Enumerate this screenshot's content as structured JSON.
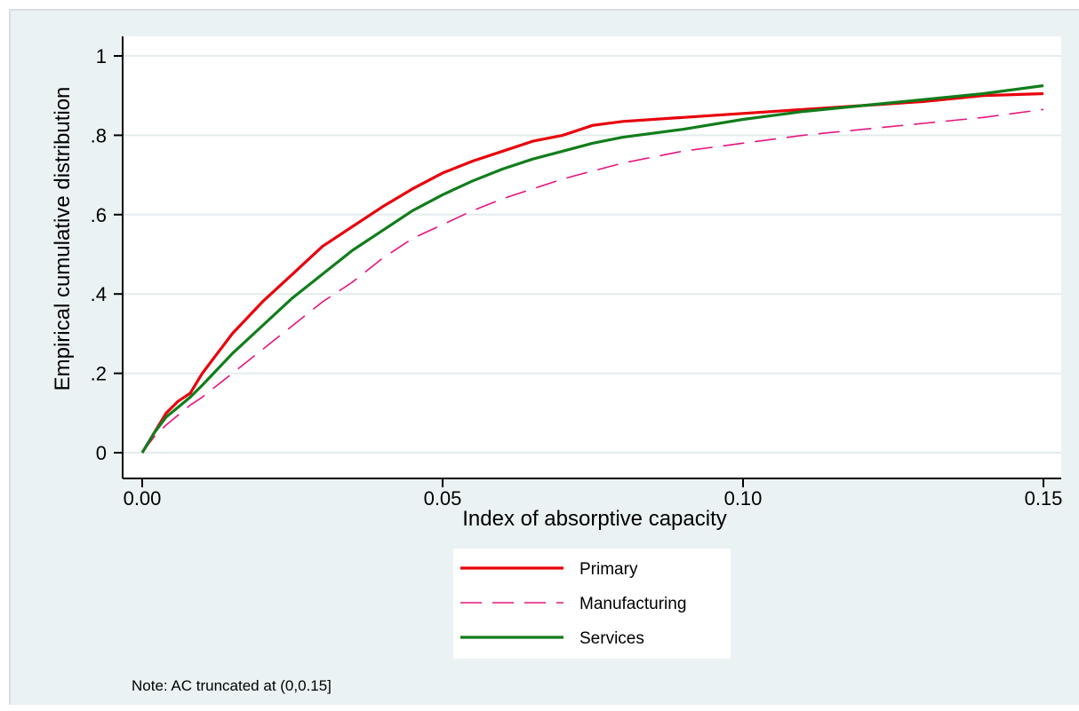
{
  "chart_data": {
    "type": "line",
    "xlabel": "Index of absorptive capacity",
    "ylabel": "Empirical cumulative distribution",
    "xlim": [
      0,
      0.15
    ],
    "ylim": [
      0,
      1
    ],
    "xticks": [
      {
        "value": 0.0,
        "label": "0.00"
      },
      {
        "value": 0.05,
        "label": "0.05"
      },
      {
        "value": 0.1,
        "label": "0.10"
      },
      {
        "value": 0.15,
        "label": "0.15"
      }
    ],
    "yticks": [
      {
        "value": 0,
        "label": "0"
      },
      {
        "value": 0.2,
        "label": ".2"
      },
      {
        "value": 0.4,
        "label": ".4"
      },
      {
        "value": 0.6,
        "label": ".6"
      },
      {
        "value": 0.8,
        "label": ".8"
      },
      {
        "value": 1,
        "label": "1"
      }
    ],
    "grid": "horizontal",
    "legend_position": "bottom",
    "series": [
      {
        "name": "Primary",
        "color": "#e8000b",
        "style": "solid",
        "x": [
          0,
          0.002,
          0.004,
          0.006,
          0.008,
          0.01,
          0.012,
          0.015,
          0.02,
          0.025,
          0.03,
          0.035,
          0.04,
          0.045,
          0.05,
          0.055,
          0.06,
          0.065,
          0.07,
          0.075,
          0.08,
          0.09,
          0.1,
          0.11,
          0.12,
          0.13,
          0.14,
          0.15
        ],
        "y": [
          0,
          0.05,
          0.1,
          0.13,
          0.15,
          0.2,
          0.24,
          0.3,
          0.38,
          0.45,
          0.52,
          0.57,
          0.62,
          0.665,
          0.705,
          0.735,
          0.76,
          0.785,
          0.8,
          0.825,
          0.835,
          0.845,
          0.855,
          0.865,
          0.875,
          0.885,
          0.9,
          0.905
        ]
      },
      {
        "name": "Manufacturing",
        "color": "#e8137c",
        "style": "dashed",
        "x": [
          0,
          0.002,
          0.004,
          0.006,
          0.008,
          0.01,
          0.015,
          0.02,
          0.025,
          0.03,
          0.035,
          0.04,
          0.045,
          0.05,
          0.055,
          0.06,
          0.065,
          0.07,
          0.075,
          0.08,
          0.09,
          0.1,
          0.11,
          0.12,
          0.13,
          0.14,
          0.15
        ],
        "y": [
          0,
          0.04,
          0.07,
          0.095,
          0.12,
          0.14,
          0.2,
          0.26,
          0.32,
          0.38,
          0.43,
          0.49,
          0.54,
          0.575,
          0.61,
          0.64,
          0.665,
          0.69,
          0.71,
          0.73,
          0.76,
          0.78,
          0.8,
          0.815,
          0.83,
          0.845,
          0.865
        ]
      },
      {
        "name": "Services",
        "color": "#117d1b",
        "style": "solid",
        "x": [
          0,
          0.002,
          0.004,
          0.006,
          0.008,
          0.01,
          0.015,
          0.02,
          0.025,
          0.03,
          0.035,
          0.04,
          0.045,
          0.05,
          0.055,
          0.06,
          0.065,
          0.07,
          0.075,
          0.08,
          0.09,
          0.1,
          0.11,
          0.12,
          0.13,
          0.14,
          0.15
        ],
        "y": [
          0,
          0.05,
          0.09,
          0.115,
          0.14,
          0.17,
          0.25,
          0.32,
          0.39,
          0.45,
          0.51,
          0.56,
          0.61,
          0.65,
          0.685,
          0.715,
          0.74,
          0.76,
          0.78,
          0.795,
          0.815,
          0.84,
          0.86,
          0.875,
          0.89,
          0.905,
          0.925
        ]
      }
    ],
    "note": "Note: AC truncated at (0,0.15]"
  }
}
